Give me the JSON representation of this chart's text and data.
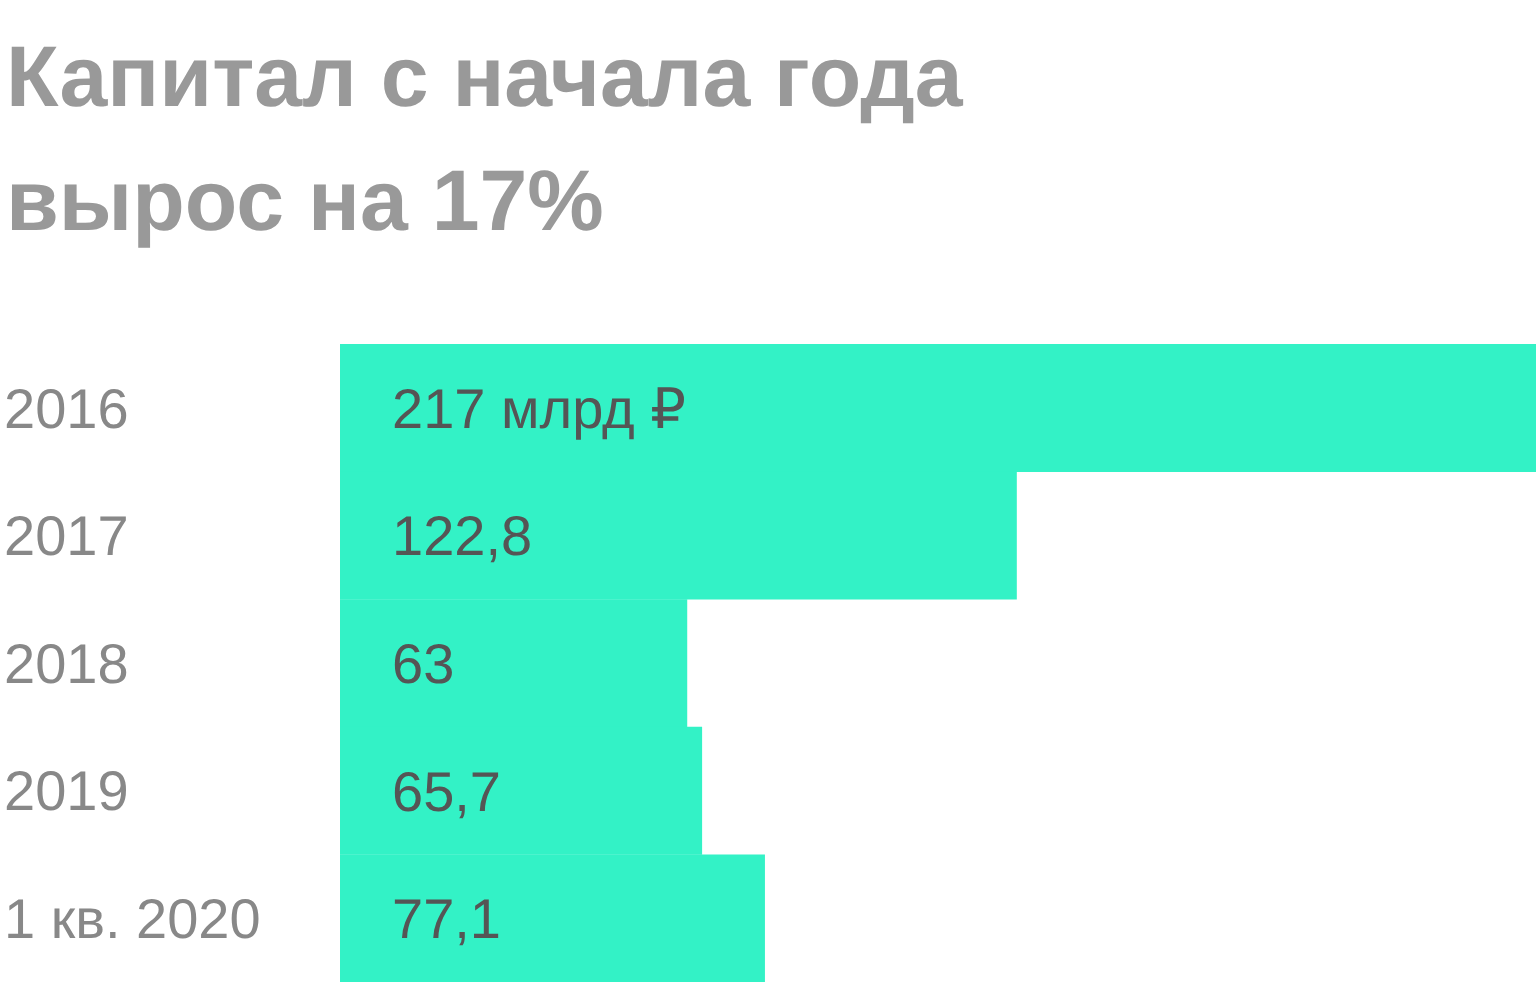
{
  "chart_data": {
    "type": "bar",
    "orientation": "horizontal",
    "title": "Капитал с начала года вырос на 17%",
    "categories": [
      "2016",
      "2017",
      "2018",
      "2019",
      "1 кв. 2020"
    ],
    "values": [
      217,
      122.8,
      63,
      65.7,
      77.1
    ],
    "value_labels": [
      "217 млрд ₽",
      "122,8",
      "63",
      "65,7",
      "77,1"
    ],
    "color": "#33f2c6"
  }
}
